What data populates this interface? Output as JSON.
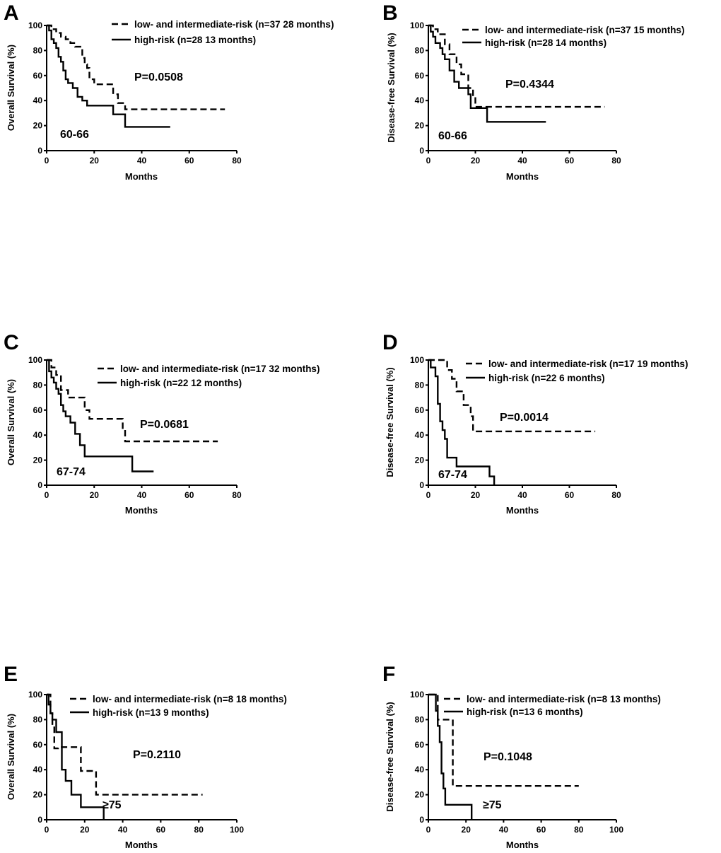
{
  "chart_data": [
    {
      "type": "line",
      "panel": "A",
      "ylabel": "Overall Survival (%)",
      "xlabel": "Months",
      "xlim": [
        0,
        80
      ],
      "ylim": [
        0,
        100
      ],
      "xticks": [
        "0",
        "20",
        "40",
        "60",
        "80"
      ],
      "yticks": [
        "0",
        "20",
        "40",
        "60",
        "80",
        "100"
      ],
      "pvalue": "P=0.0508",
      "group_label": "60-66",
      "legend": [
        {
          "label": "low- and intermediate-risk (n=37 28 months)",
          "style": "dashed"
        },
        {
          "label": "high-risk (n=28 13 months)",
          "style": "solid"
        }
      ],
      "series": [
        {
          "name": "low- and intermediate-risk",
          "style": "dashed",
          "x": [
            0,
            2,
            4,
            6,
            8,
            10,
            12,
            15,
            16,
            17,
            18,
            20,
            28,
            30,
            33,
            75
          ],
          "y": [
            100,
            97,
            94,
            91,
            89,
            86,
            83,
            74,
            69,
            66,
            57,
            53,
            45,
            38,
            33,
            33
          ]
        },
        {
          "name": "high-risk",
          "style": "solid",
          "x": [
            0,
            1,
            2,
            3,
            4,
            5,
            6,
            7,
            8,
            9,
            11,
            13,
            15,
            17,
            20,
            28,
            33,
            52
          ],
          "y": [
            100,
            96,
            89,
            86,
            82,
            75,
            71,
            64,
            57,
            54,
            50,
            43,
            40,
            36,
            36,
            29,
            19,
            19
          ]
        }
      ]
    },
    {
      "type": "line",
      "panel": "B",
      "ylabel": "Disease-free Survival (%)",
      "xlabel": "Months",
      "xlim": [
        0,
        80
      ],
      "ylim": [
        0,
        100
      ],
      "xticks": [
        "0",
        "20",
        "40",
        "60",
        "80"
      ],
      "yticks": [
        "0",
        "20",
        "40",
        "60",
        "80",
        "100"
      ],
      "pvalue": "P=0.4344",
      "group_label": "60-66",
      "legend": [
        {
          "label": "low- and intermediate-risk (n=37 15 months)",
          "style": "dashed"
        },
        {
          "label": "high-risk (n=28 14 months)",
          "style": "solid"
        }
      ],
      "series": [
        {
          "name": "low- and intermediate-risk",
          "style": "dashed",
          "x": [
            0,
            2,
            4,
            7,
            9,
            12,
            14,
            17,
            19,
            20,
            75
          ],
          "y": [
            100,
            97,
            93,
            85,
            77,
            69,
            61,
            50,
            42,
            35,
            35
          ]
        },
        {
          "name": "high-risk",
          "style": "solid",
          "x": [
            0,
            1,
            2,
            3,
            5,
            6,
            7,
            9,
            11,
            13,
            17,
            18,
            25,
            50
          ],
          "y": [
            100,
            95,
            91,
            86,
            82,
            77,
            73,
            64,
            55,
            50,
            45,
            34,
            23,
            23
          ]
        }
      ]
    },
    {
      "type": "line",
      "panel": "C",
      "ylabel": "Overall Survival (%)",
      "xlabel": "Months",
      "xlim": [
        0,
        80
      ],
      "ylim": [
        0,
        100
      ],
      "xticks": [
        "0",
        "20",
        "40",
        "60",
        "80"
      ],
      "yticks": [
        "0",
        "20",
        "40",
        "60",
        "80",
        "100"
      ],
      "pvalue": "P=0.0681",
      "group_label": "67-74",
      "legend": [
        {
          "label": "low- and intermediate-risk (n=17 32 months)",
          "style": "dashed"
        },
        {
          "label": "high-risk (n=22 12 months)",
          "style": "solid"
        }
      ],
      "series": [
        {
          "name": "low- and intermediate-risk",
          "style": "dashed",
          "x": [
            0,
            2,
            4,
            6,
            9,
            16,
            18,
            32,
            33,
            72
          ],
          "y": [
            100,
            94,
            88,
            76,
            70,
            60,
            53,
            45,
            35,
            35
          ]
        },
        {
          "name": "high-risk",
          "style": "solid",
          "x": [
            0,
            1,
            2,
            3,
            4,
            5,
            6,
            7,
            8,
            10,
            12,
            14,
            16,
            36,
            45
          ],
          "y": [
            100,
            91,
            86,
            82,
            77,
            73,
            64,
            59,
            55,
            50,
            41,
            32,
            23,
            11,
            11
          ]
        }
      ]
    },
    {
      "type": "line",
      "panel": "D",
      "ylabel": "Disease-free Survival (%)",
      "xlabel": "Months",
      "xlim": [
        0,
        80
      ],
      "ylim": [
        0,
        100
      ],
      "xticks": [
        "0",
        "20",
        "40",
        "60",
        "80"
      ],
      "yticks": [
        "0",
        "20",
        "40",
        "60",
        "80",
        "100"
      ],
      "pvalue": "P=0.0014",
      "group_label": "67-74",
      "legend": [
        {
          "label": "low- and intermediate-risk (n=17 19 months)",
          "style": "dashed"
        },
        {
          "label": "high-risk (n=22 6 months)",
          "style": "solid"
        }
      ],
      "series": [
        {
          "name": "low- and intermediate-risk",
          "style": "dashed",
          "x": [
            0,
            8,
            10,
            12,
            15,
            18,
            19,
            71
          ],
          "y": [
            100,
            92,
            85,
            75,
            64,
            55,
            43,
            43
          ]
        },
        {
          "name": "high-risk",
          "style": "solid",
          "x": [
            0,
            1,
            3,
            4,
            5,
            6,
            7,
            8,
            12,
            24,
            26,
            28
          ],
          "y": [
            100,
            94,
            87,
            65,
            51,
            44,
            37,
            22,
            15,
            15,
            7,
            0
          ]
        }
      ]
    },
    {
      "type": "line",
      "panel": "E",
      "ylabel": "Overall Survival (%)",
      "xlabel": "Months",
      "xlim": [
        0,
        100
      ],
      "ylim": [
        0,
        100
      ],
      "xticks": [
        "0",
        "20",
        "40",
        "60",
        "80",
        "100"
      ],
      "yticks": [
        "0",
        "20",
        "40",
        "60",
        "80",
        "100"
      ],
      "pvalue": "P=0.2110",
      "group_label": "≥75",
      "legend": [
        {
          "label": "low- and intermediate-risk (n=8 18 months)",
          "style": "dashed"
        },
        {
          "label": "high-risk (n=13 9 months)",
          "style": "solid"
        }
      ],
      "series": [
        {
          "name": "low- and intermediate-risk",
          "style": "dashed",
          "x": [
            0,
            2,
            3,
            4,
            6,
            18,
            24,
            26,
            82
          ],
          "y": [
            100,
            85,
            75,
            57,
            58,
            39,
            39,
            20,
            20
          ]
        },
        {
          "name": "high-risk",
          "style": "solid",
          "x": [
            0,
            1,
            2,
            3,
            5,
            8,
            10,
            13,
            18,
            30
          ],
          "y": [
            100,
            92,
            85,
            80,
            70,
            40,
            31,
            20,
            10,
            0
          ]
        }
      ]
    },
    {
      "type": "line",
      "panel": "F",
      "ylabel": "Disease-free Survival (%)",
      "xlabel": "Months",
      "xlim": [
        0,
        100
      ],
      "ylim": [
        0,
        100
      ],
      "xticks": [
        "0",
        "20",
        "40",
        "60",
        "80",
        "100"
      ],
      "yticks": [
        "0",
        "20",
        "40",
        "60",
        "80",
        "100"
      ],
      "pvalue": "P=0.1048",
      "group_label": "≥75",
      "legend": [
        {
          "label": "low- and intermediate-risk (n=8 13 months)",
          "style": "dashed"
        },
        {
          "label": "high-risk (n=13 6 months)",
          "style": "solid"
        }
      ],
      "series": [
        {
          "name": "low- and intermediate-risk",
          "style": "dashed",
          "x": [
            0,
            5,
            11,
            13,
            80
          ],
          "y": [
            100,
            80,
            80,
            27,
            27
          ]
        },
        {
          "name": "high-risk",
          "style": "solid",
          "x": [
            0,
            4,
            5,
            6,
            7,
            8,
            9,
            23
          ],
          "y": [
            100,
            87,
            75,
            62,
            37,
            25,
            12,
            0
          ]
        }
      ]
    }
  ]
}
